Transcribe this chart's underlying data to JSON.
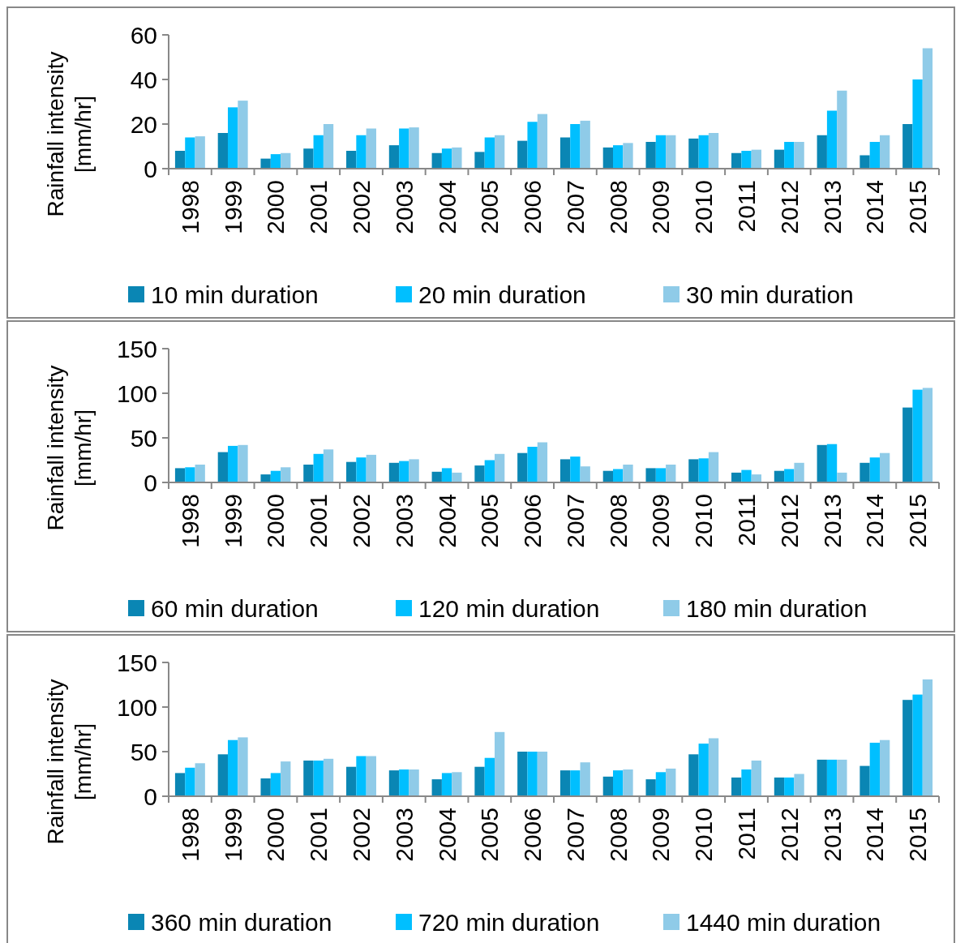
{
  "chart_data": [
    {
      "type": "bar",
      "ylabel": "Rainfall intensity [mm/hr]",
      "categories": [
        "1998",
        "1999",
        "2000",
        "2001",
        "2002",
        "2003",
        "2004",
        "2005",
        "2006",
        "2007",
        "2008",
        "2009",
        "2010",
        "2011",
        "2012",
        "2013",
        "2014",
        "2015"
      ],
      "ylim": [
        0,
        60
      ],
      "yticks": [
        0,
        20,
        40,
        60
      ],
      "legend": "bottom",
      "grid": false,
      "series": [
        {
          "name": "10 min duration",
          "color": "#0a86b4",
          "values": [
            8,
            16,
            4.5,
            9,
            8,
            10.5,
            7,
            7.5,
            12.5,
            14,
            9.5,
            12,
            13.5,
            7,
            8.5,
            15,
            6,
            20
          ]
        },
        {
          "name": "20 min duration",
          "color": "#00bfff",
          "values": [
            14,
            27.5,
            6.5,
            15,
            15,
            18,
            9,
            14,
            21,
            20,
            10.5,
            15,
            15,
            8,
            12,
            26,
            12,
            40
          ]
        },
        {
          "name": "30 min duration",
          "color": "#8fcbe8",
          "values": [
            14.5,
            30.5,
            7,
            20,
            18,
            18.5,
            9.5,
            15,
            24.5,
            21.5,
            11.5,
            15,
            16,
            8.5,
            12,
            35,
            15,
            54
          ]
        }
      ]
    },
    {
      "type": "bar",
      "ylabel": "Rainfall intensity [mm/hr]",
      "categories": [
        "1998",
        "1999",
        "2000",
        "2001",
        "2002",
        "2003",
        "2004",
        "2005",
        "2006",
        "2007",
        "2008",
        "2009",
        "2010",
        "2011",
        "2012",
        "2013",
        "2014",
        "2015"
      ],
      "ylim": [
        0,
        150
      ],
      "yticks": [
        0,
        50,
        100,
        150
      ],
      "legend": "bottom",
      "grid": false,
      "series": [
        {
          "name": "60 min duration",
          "color": "#0a86b4",
          "values": [
            16,
            34,
            9,
            20,
            23,
            22,
            12,
            19,
            33,
            26,
            13,
            16,
            26,
            11,
            13,
            42,
            22,
            84
          ]
        },
        {
          "name": "120 min duration",
          "color": "#00bfff",
          "values": [
            17,
            41,
            13,
            32,
            28,
            24,
            16,
            25,
            40,
            29,
            15,
            16,
            27,
            14,
            15,
            43,
            28,
            104
          ]
        },
        {
          "name": "180 min duration",
          "color": "#8fcbe8",
          "values": [
            20,
            42,
            17,
            37,
            31,
            26,
            11,
            32,
            45,
            18,
            20,
            20,
            34,
            9,
            22,
            11,
            33,
            106
          ]
        }
      ]
    },
    {
      "type": "bar",
      "ylabel": "Rainfall intensity [mm/hr]",
      "categories": [
        "1998",
        "1999",
        "2000",
        "2001",
        "2002",
        "2003",
        "2004",
        "2005",
        "2006",
        "2007",
        "2008",
        "2009",
        "2010",
        "2011",
        "2012",
        "2013",
        "2014",
        "2015"
      ],
      "ylim": [
        0,
        150
      ],
      "yticks": [
        0,
        50,
        100,
        150
      ],
      "legend": "bottom",
      "grid": false,
      "series": [
        {
          "name": "360 min duration",
          "color": "#0a86b4",
          "values": [
            26,
            47,
            20,
            40,
            33,
            29,
            19,
            33,
            50,
            29,
            22,
            19,
            47,
            21,
            21,
            41,
            34,
            108
          ]
        },
        {
          "name": "720 min duration",
          "color": "#00bfff",
          "values": [
            32,
            63,
            26,
            40,
            45,
            30,
            26,
            43,
            50,
            29,
            29,
            27,
            59,
            30,
            21,
            41,
            60,
            114
          ]
        },
        {
          "name": "1440 min duration",
          "color": "#8fcbe8",
          "values": [
            37,
            66,
            39,
            42,
            45,
            30,
            27,
            72,
            50,
            38,
            30,
            31,
            65,
            40,
            25,
            41,
            63,
            131
          ]
        }
      ]
    }
  ]
}
